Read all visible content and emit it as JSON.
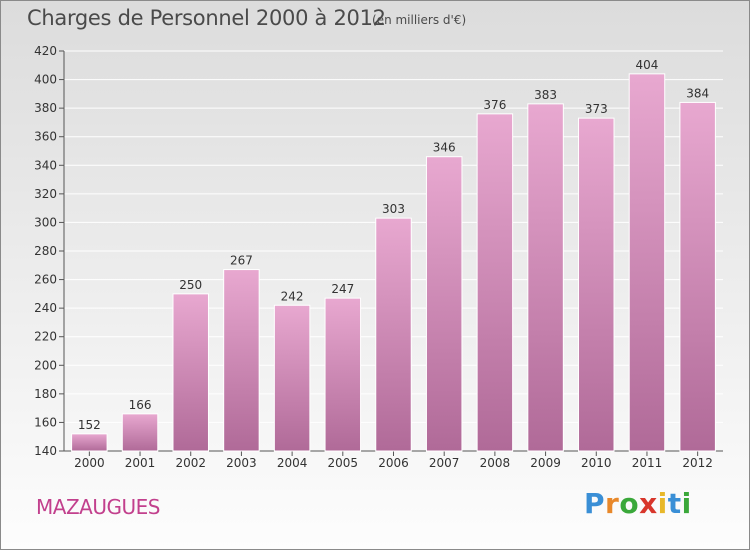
{
  "title": "Charges de Personnel 2000 à 2012",
  "subtitle": "(en milliers d'€)",
  "commune": "MAZAUGUES",
  "logo": {
    "letters": [
      "P",
      "r",
      "o",
      "x",
      "i",
      "t",
      "i"
    ],
    "colors": [
      "#3a8fd6",
      "#e8882a",
      "#3aa83a",
      "#d8362b",
      "#e8b82a",
      "#3a8fd6",
      "#3aa83a"
    ]
  },
  "colors": {
    "bar_light": "#e8a8d0",
    "bar_dark": "#b06a98",
    "title": "#4a4a4a",
    "commune": "#c2408d"
  },
  "chart_data": {
    "type": "bar",
    "title": "Charges de Personnel 2000 à 2012",
    "subtitle": "(en milliers d'€)",
    "categories": [
      "2000",
      "2001",
      "2002",
      "2003",
      "2004",
      "2005",
      "2006",
      "2007",
      "2008",
      "2009",
      "2010",
      "2011",
      "2012"
    ],
    "values": [
      152,
      166,
      250,
      267,
      242,
      247,
      303,
      346,
      376,
      383,
      373,
      404,
      384
    ],
    "ylim": [
      140,
      420
    ],
    "yticks": [
      140,
      160,
      180,
      200,
      220,
      240,
      260,
      280,
      300,
      320,
      340,
      360,
      380,
      400,
      420
    ],
    "grid": true,
    "xlabel": "",
    "ylabel": ""
  }
}
